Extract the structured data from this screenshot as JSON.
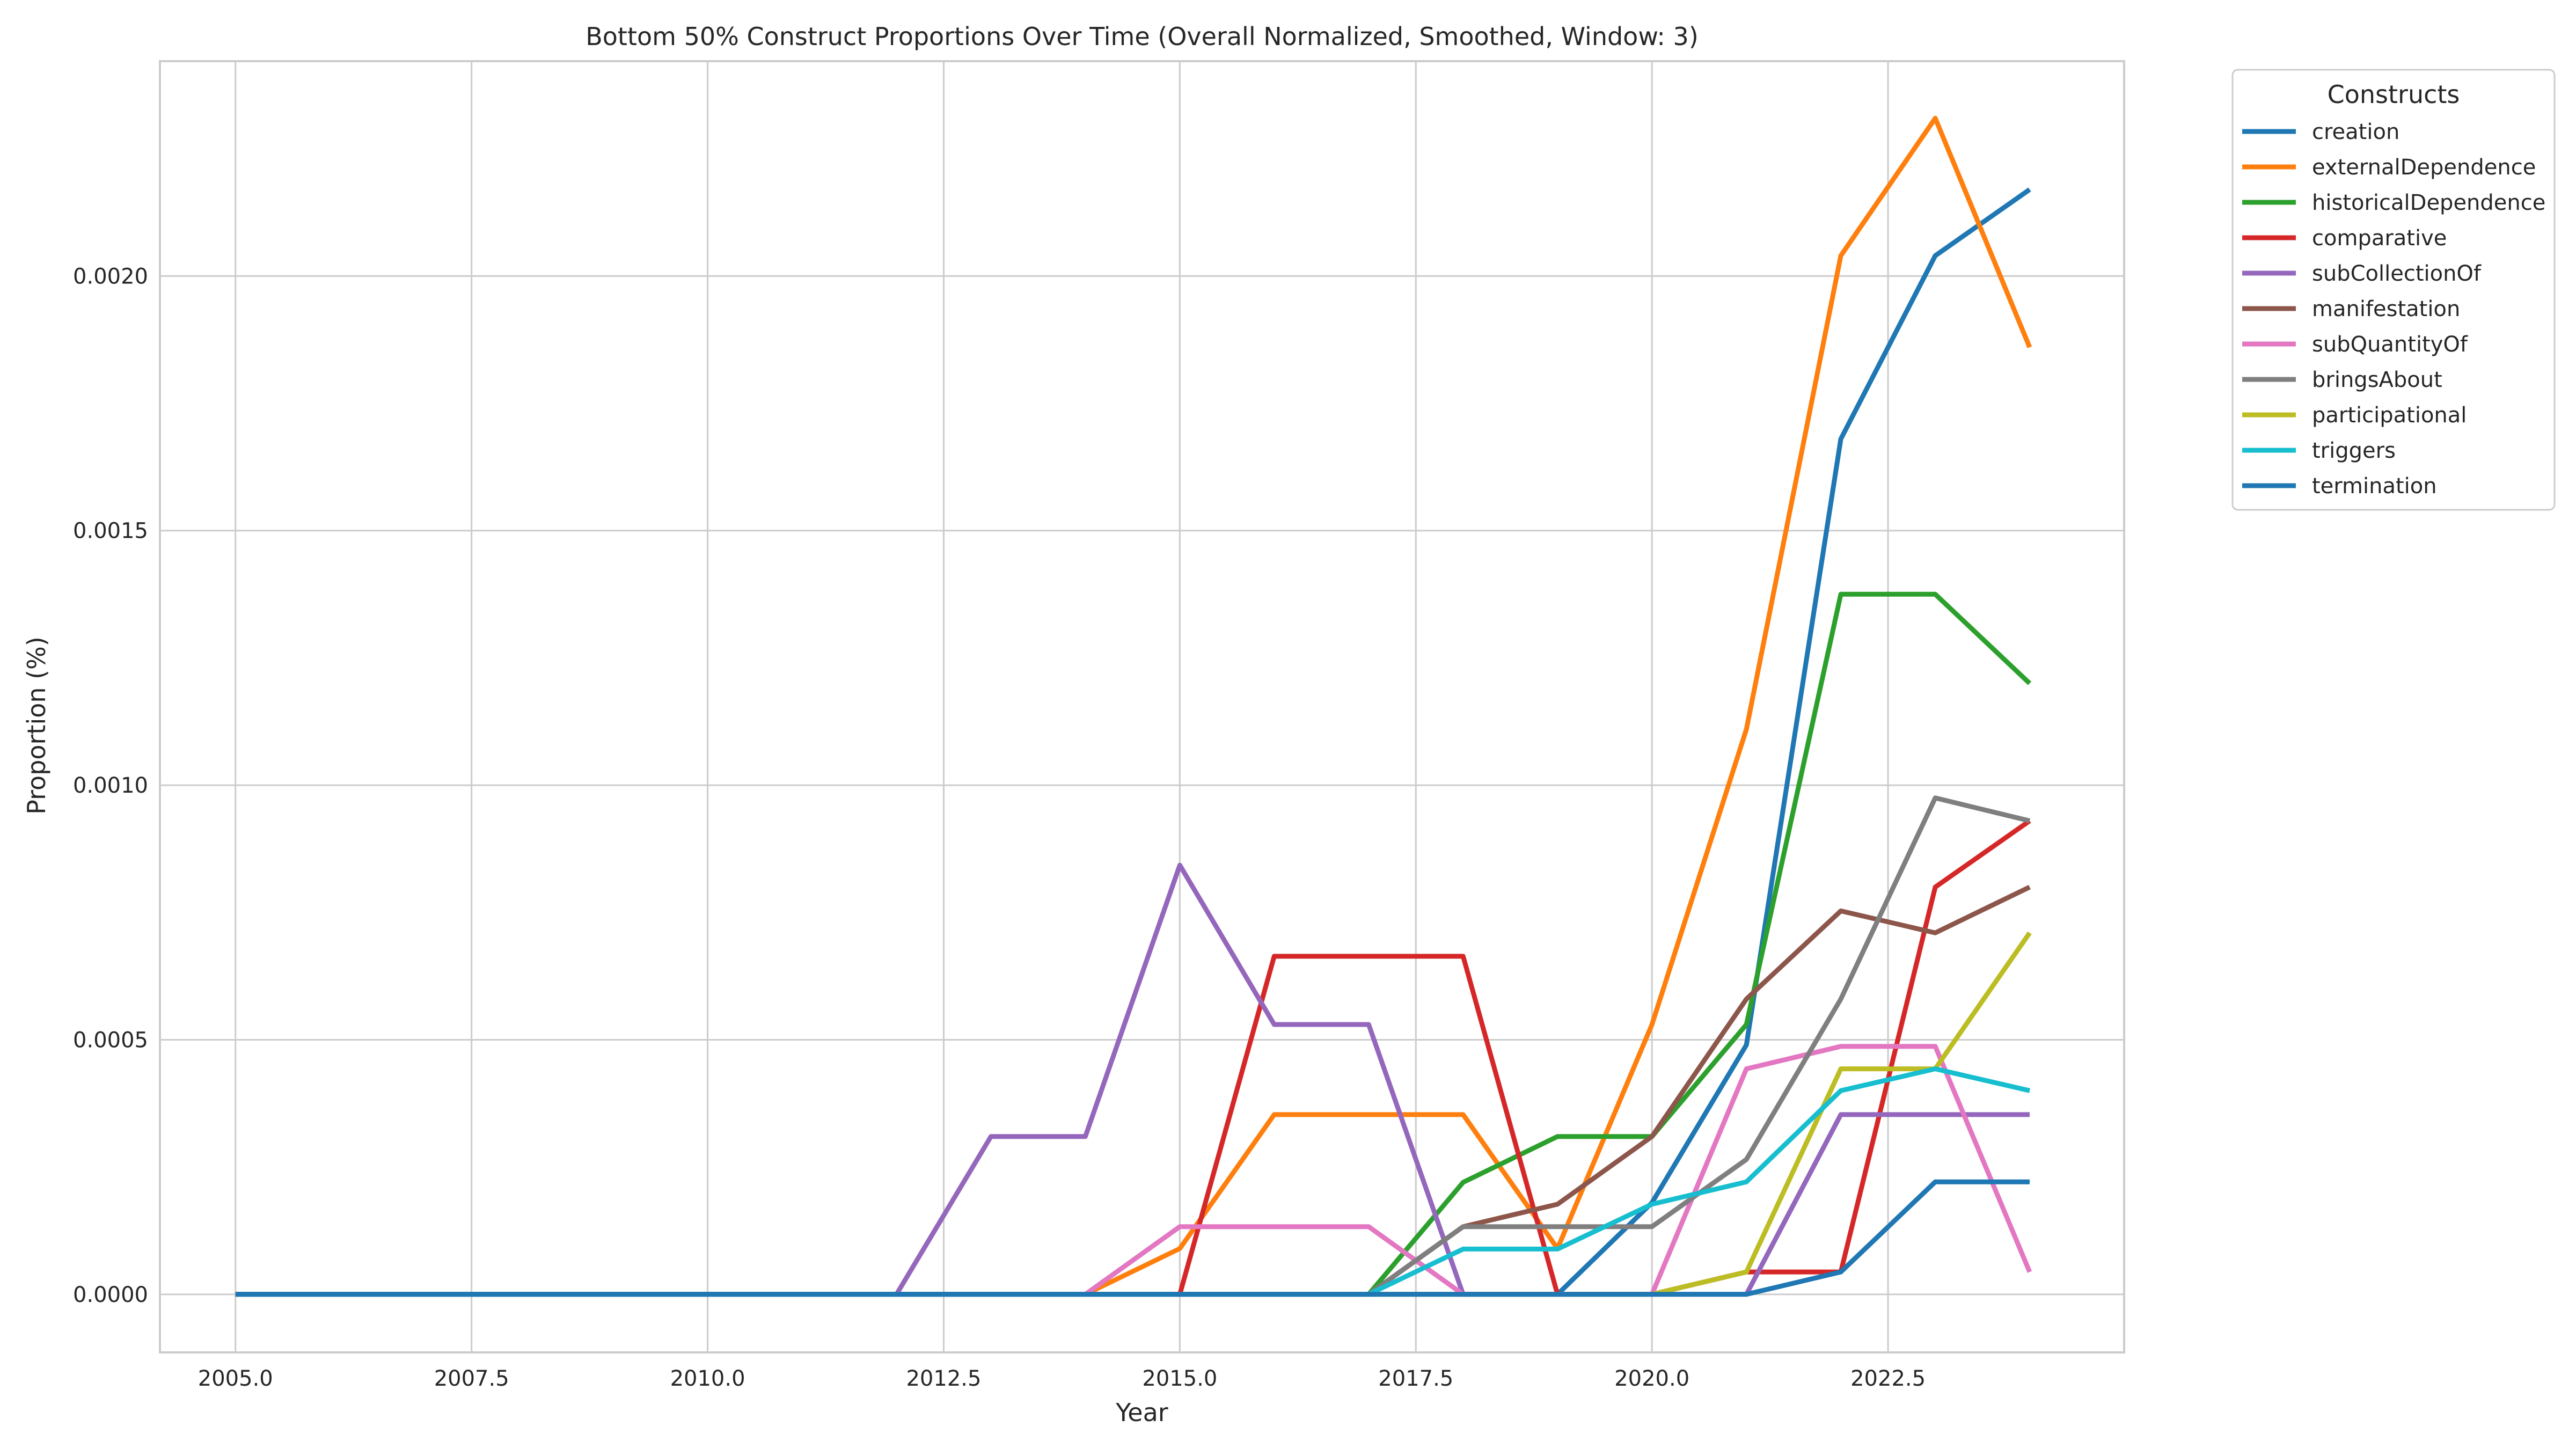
{
  "chart_data": {
    "type": "line",
    "title": "Bottom 50% Construct Proportions Over Time (Overall Normalized, Smoothed, Window: 3)",
    "xlabel": "Year",
    "ylabel": "Proportion (%)",
    "xlim": [
      2004.2,
      2025.0
    ],
    "ylim": [
      -0.000114,
      0.002422
    ],
    "xticks": [
      2005.0,
      2007.5,
      2010.0,
      2012.5,
      2015.0,
      2017.5,
      2020.0,
      2022.5
    ],
    "xtick_labels": [
      "2005.0",
      "2007.5",
      "2010.0",
      "2012.5",
      "2015.0",
      "2017.5",
      "2020.0",
      "2022.5"
    ],
    "yticks": [
      0.0,
      0.0005,
      0.001,
      0.0015,
      0.002
    ],
    "ytick_labels": [
      "0.0000",
      "0.0005",
      "0.0010",
      "0.0015",
      "0.0020"
    ],
    "grid": true,
    "legend": {
      "title": "Constructs",
      "placement": "outside-top-right"
    },
    "x": [
      2005,
      2006,
      2007,
      2008,
      2009,
      2010,
      2011,
      2012,
      2013,
      2014,
      2015,
      2016,
      2017,
      2018,
      2019,
      2020,
      2021,
      2022,
      2023,
      2024
    ],
    "series": [
      {
        "name": "creation",
        "color": "#1f77b4",
        "values": [
          0,
          0,
          0,
          0,
          0,
          0,
          0,
          0,
          0,
          0,
          0,
          0,
          0,
          0,
          0,
          0.00018,
          0.00049,
          0.00168,
          0.00204,
          0.00217
        ]
      },
      {
        "name": "externalDependence",
        "color": "#ff7f0e",
        "values": [
          0,
          0,
          0,
          0,
          0,
          0,
          0,
          0,
          0,
          0,
          9e-05,
          0.000353,
          0.000353,
          0.000353,
          9e-05,
          0.00053,
          0.00111,
          0.00204,
          0.00231,
          0.00186
        ]
      },
      {
        "name": "historicalDependence",
        "color": "#2ca02c",
        "values": [
          0,
          0,
          0,
          0,
          0,
          0,
          0,
          0,
          0,
          0,
          0,
          0,
          0,
          0.00022,
          0.00031,
          0.00031,
          0.00053,
          0.001375,
          0.001375,
          0.0012
        ]
      },
      {
        "name": "comparative",
        "color": "#d62728",
        "values": [
          0,
          0,
          0,
          0,
          0,
          0,
          0,
          0,
          0,
          0,
          0,
          0.000664,
          0.000664,
          0.000664,
          0,
          0,
          4.4e-05,
          4.4e-05,
          0.0008,
          0.00093
        ]
      },
      {
        "name": "subCollectionOf",
        "color": "#9467bd",
        "values": [
          0,
          0,
          0,
          0,
          0,
          0,
          0,
          0,
          0.00031,
          0.00031,
          0.000843,
          0.00053,
          0.00053,
          0,
          0,
          0,
          0,
          0.000353,
          0.000353,
          0.000353
        ]
      },
      {
        "name": "manifestation",
        "color": "#8c564b",
        "values": [
          0,
          0,
          0,
          0,
          0,
          0,
          0,
          0,
          0,
          0,
          0,
          0,
          0,
          0.000133,
          0.000177,
          0.00031,
          0.00058,
          0.000753,
          0.00071,
          0.0008
        ]
      },
      {
        "name": "subQuantityOf",
        "color": "#e377c2",
        "values": [
          0,
          0,
          0,
          0,
          0,
          0,
          0,
          0,
          0,
          0,
          0.000133,
          0.000133,
          0.000133,
          0,
          0,
          0,
          0.000443,
          0.000487,
          0.000487,
          4.4e-05
        ]
      },
      {
        "name": "bringsAbout",
        "color": "#7f7f7f",
        "values": [
          0,
          0,
          0,
          0,
          0,
          0,
          0,
          0,
          0,
          0,
          0,
          0,
          0,
          0.000133,
          0.000133,
          0.000133,
          0.000265,
          0.00058,
          0.000975,
          0.00093
        ]
      },
      {
        "name": "participational",
        "color": "#bcbd22",
        "values": [
          0,
          0,
          0,
          0,
          0,
          0,
          0,
          0,
          0,
          0,
          0,
          0,
          0,
          0,
          0,
          0,
          4.4e-05,
          0.000443,
          0.000443,
          0.00071
        ]
      },
      {
        "name": "triggers",
        "color": "#17becf",
        "values": [
          0,
          0,
          0,
          0,
          0,
          0,
          0,
          0,
          0,
          0,
          0,
          0,
          0,
          8.9e-05,
          8.9e-05,
          0.000177,
          0.000221,
          0.0004,
          0.000443,
          0.0004
        ]
      },
      {
        "name": "termination",
        "color": "#1f77b4",
        "values": [
          0,
          0,
          0,
          0,
          0,
          0,
          0,
          0,
          0,
          0,
          0,
          0,
          0,
          0,
          0,
          0,
          0,
          4.4e-05,
          0.000221,
          0.000221
        ]
      }
    ]
  }
}
